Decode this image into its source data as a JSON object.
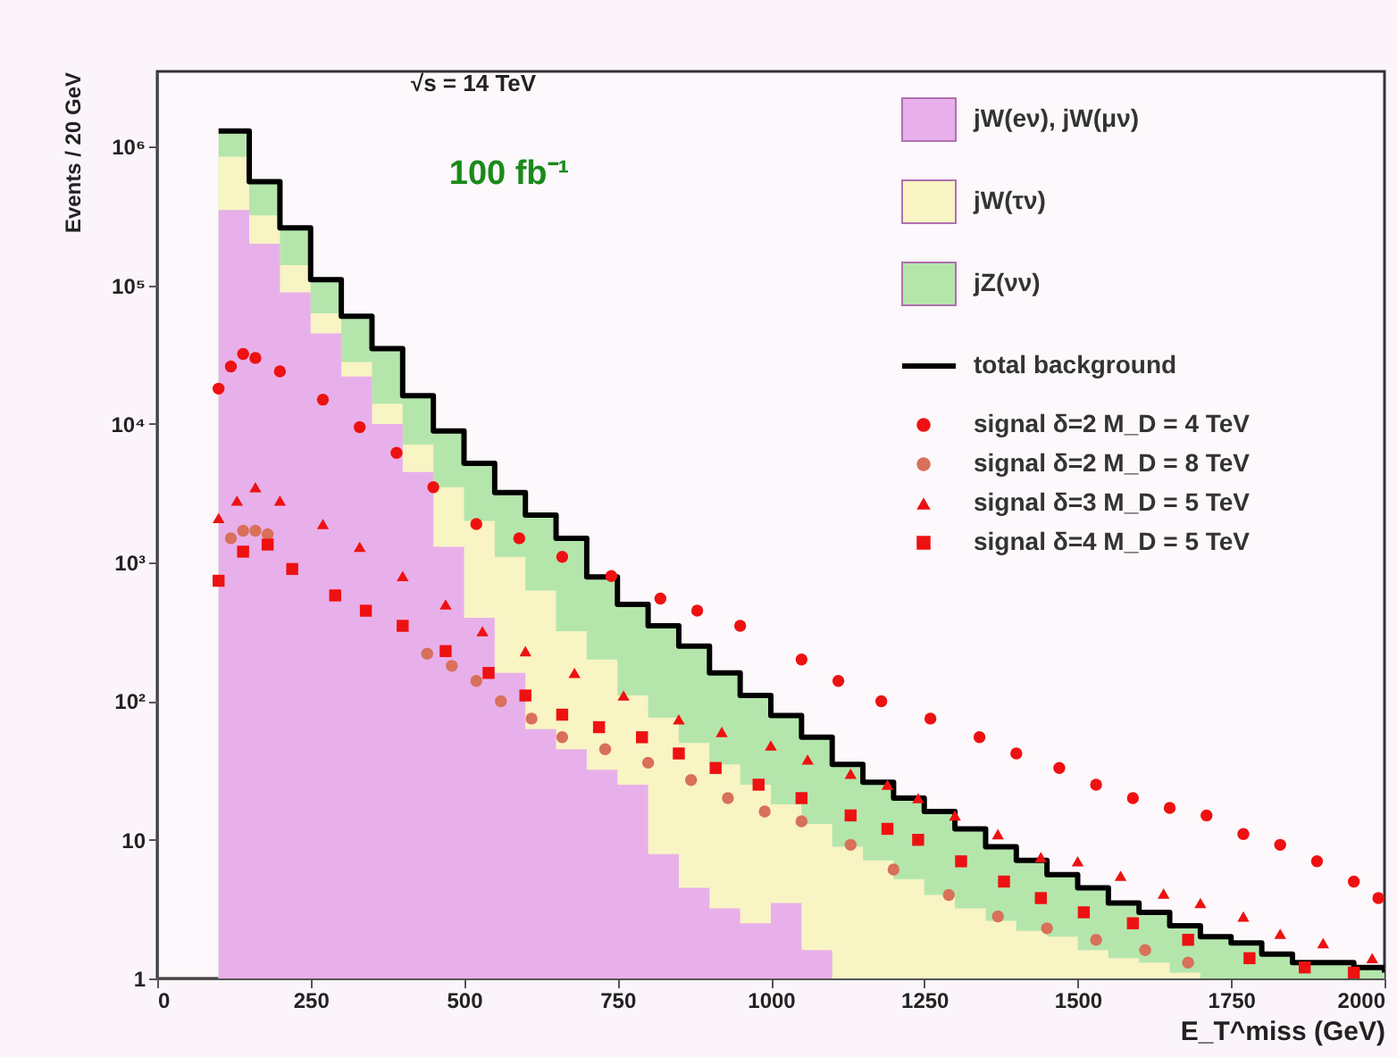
{
  "chart_data": {
    "type": "area",
    "xlabel": "E_T^miss (GeV)",
    "ylabel": "Events / 20 GeV",
    "annotations": [
      "√s = 14 TeV",
      "100 fb⁻¹"
    ],
    "xlim": [
      0,
      2000
    ],
    "xticks": [
      0,
      250,
      500,
      750,
      1000,
      1250,
      1500,
      1750,
      2000
    ],
    "ylim": [
      1,
      3500000
    ],
    "log": true,
    "yticks": [
      1,
      10,
      {
        "value": 100,
        "label": "10²"
      },
      {
        "value": 1000,
        "label": "10³"
      },
      {
        "value": 10000,
        "label": "10⁴"
      },
      {
        "value": 100000,
        "label": "10⁵"
      },
      {
        "value": 1000000,
        "label": "10⁶"
      }
    ],
    "grid": false,
    "legend": "top right",
    "series": [
      {
        "name": "jW(eν), jW(μν)",
        "color": "#e8b0ea",
        "x": [
          100,
          150,
          200,
          250,
          300,
          350,
          400,
          450,
          500,
          550,
          600,
          650,
          700,
          750,
          800,
          850,
          900,
          950,
          1000,
          1050,
          1100
        ],
        "values": [
          350000,
          200000,
          89000,
          45000,
          22000,
          10000,
          4500,
          1300,
          400,
          160,
          63,
          45,
          32,
          25,
          7.9,
          4.5,
          3.2,
          2.5,
          3.5,
          1.6,
          1.1
        ]
      },
      {
        "name": "jW(τν)",
        "color": "#f8f4c4",
        "x": [
          100,
          150,
          200,
          250,
          300,
          350,
          400,
          450,
          500,
          550,
          600,
          650,
          700,
          750,
          800,
          850,
          900,
          950,
          1000,
          1050,
          1100,
          1150,
          1200,
          1250,
          1300,
          1350,
          1400,
          1450,
          1500,
          1550,
          1600,
          1650,
          1700
        ],
        "values": [
          850000,
          320000,
          140000,
          63000,
          28000,
          14000,
          7100,
          3500,
          2000,
          1100,
          630,
          320,
          200,
          110,
          76,
          50,
          35,
          25,
          18,
          13,
          8.9,
          7.1,
          5.2,
          4.0,
          3.2,
          2.6,
          2.2,
          2.0,
          1.6,
          1.4,
          1.3,
          1.1,
          1.1
        ]
      },
      {
        "name": "jZ(νν)",
        "color": "#b4e6ac",
        "x": [
          100,
          150,
          200,
          250,
          300,
          350,
          400,
          450,
          500,
          550,
          600,
          650,
          700,
          750,
          800,
          850,
          900,
          950,
          1000,
          1050,
          1100,
          1150,
          1200,
          1250,
          1300,
          1350,
          1400,
          1450,
          1500,
          1550,
          1600,
          1650,
          1700,
          1750,
          1800,
          1850,
          1900,
          1950,
          2000
        ],
        "values": [
          1300000,
          560000,
          260000,
          110000,
          60000,
          35000,
          16000,
          8900,
          5200,
          3200,
          2200,
          1500,
          790,
          500,
          350,
          250,
          160,
          110,
          79,
          55,
          35,
          26,
          20,
          16,
          12,
          8.9,
          7.1,
          5.6,
          4.5,
          3.5,
          3.0,
          2.4,
          2.0,
          1.8,
          1.5,
          1.3,
          1.3,
          1.2,
          1.1
        ]
      },
      {
        "name": "total background",
        "type": "step",
        "color": "#000000",
        "x": [
          100,
          150,
          200,
          250,
          300,
          350,
          400,
          450,
          500,
          550,
          600,
          650,
          700,
          750,
          800,
          850,
          900,
          950,
          1000,
          1050,
          1100,
          1150,
          1200,
          1250,
          1300,
          1350,
          1400,
          1450,
          1500,
          1550,
          1600,
          1650,
          1700,
          1750,
          1800,
          1850,
          1900,
          1950,
          2000
        ],
        "values": [
          1300000,
          560000,
          260000,
          110000,
          60000,
          35000,
          16000,
          8900,
          5200,
          3200,
          2200,
          1500,
          790,
          500,
          350,
          250,
          160,
          110,
          79,
          55,
          35,
          26,
          20,
          16,
          12,
          8.9,
          7.1,
          5.6,
          4.5,
          3.5,
          3.0,
          2.4,
          2.0,
          1.8,
          1.5,
          1.3,
          1.3,
          1.2,
          1.1
        ]
      },
      {
        "name": "signal δ=2  M_D = 4 TeV",
        "type": "scatter",
        "marker": "circle",
        "color": "#ee1111",
        "x": [
          100,
          120,
          140,
          160,
          200,
          270,
          330,
          390,
          450,
          520,
          590,
          660,
          740,
          820,
          880,
          950,
          1050,
          1110,
          1180,
          1260,
          1340,
          1400,
          1470,
          1530,
          1590,
          1650,
          1710,
          1770,
          1830,
          1890,
          1950,
          1990
        ],
        "values": [
          18000,
          26000,
          32000,
          30000,
          24000,
          15000,
          9500,
          6200,
          3500,
          1900,
          1500,
          1100,
          800,
          550,
          450,
          350,
          200,
          140,
          100,
          75,
          55,
          42,
          33,
          25,
          20,
          17,
          15,
          11,
          9.2,
          7,
          5,
          3.8
        ]
      },
      {
        "name": "signal δ=2  M_D = 8 TeV",
        "type": "scatter",
        "marker": "circle",
        "color": "#d8705a",
        "x": [
          120,
          140,
          160,
          180,
          440,
          480,
          520,
          560,
          610,
          660,
          730,
          800,
          870,
          930,
          990,
          1050,
          1130,
          1200,
          1290,
          1370,
          1450,
          1530,
          1610,
          1680
        ],
        "values": [
          1500,
          1700,
          1700,
          1600,
          220,
          180,
          140,
          100,
          75,
          55,
          45,
          36,
          27,
          20,
          16,
          13.6,
          9.2,
          6.1,
          4,
          2.8,
          2.3,
          1.9,
          1.6,
          1.3
        ]
      },
      {
        "name": "signal δ=3  M_D = 5 TeV",
        "type": "scatter",
        "marker": "triangle",
        "color": "#ee1111",
        "x": [
          100,
          130,
          160,
          200,
          270,
          330,
          400,
          470,
          530,
          600,
          680,
          760,
          850,
          920,
          1000,
          1060,
          1130,
          1190,
          1240,
          1300,
          1370,
          1440,
          1500,
          1570,
          1640,
          1700,
          1770,
          1830,
          1900,
          1980
        ],
        "values": [
          2100,
          2800,
          3500,
          2800,
          1900,
          1300,
          800,
          500,
          320,
          230,
          160,
          110,
          74,
          60,
          48,
          38,
          30,
          25,
          20,
          15,
          11,
          7.5,
          7,
          5.5,
          4.1,
          3.5,
          2.8,
          2.1,
          1.8,
          1.4
        ]
      },
      {
        "name": "signal δ=4  M_D = 5 TeV",
        "type": "scatter",
        "marker": "square",
        "color": "#ee1111",
        "x": [
          100,
          140,
          180,
          220,
          290,
          340,
          400,
          470,
          540,
          600,
          660,
          720,
          790,
          850,
          910,
          980,
          1050,
          1130,
          1190,
          1240,
          1310,
          1380,
          1440,
          1510,
          1590,
          1680,
          1780,
          1870,
          1950
        ],
        "values": [
          740,
          1200,
          1350,
          900,
          580,
          450,
          350,
          230,
          160,
          110,
          80,
          65,
          55,
          42,
          33,
          25,
          20,
          15,
          12,
          10,
          7,
          5,
          3.8,
          3,
          2.5,
          1.9,
          1.4,
          1.2,
          1.1
        ]
      }
    ]
  }
}
